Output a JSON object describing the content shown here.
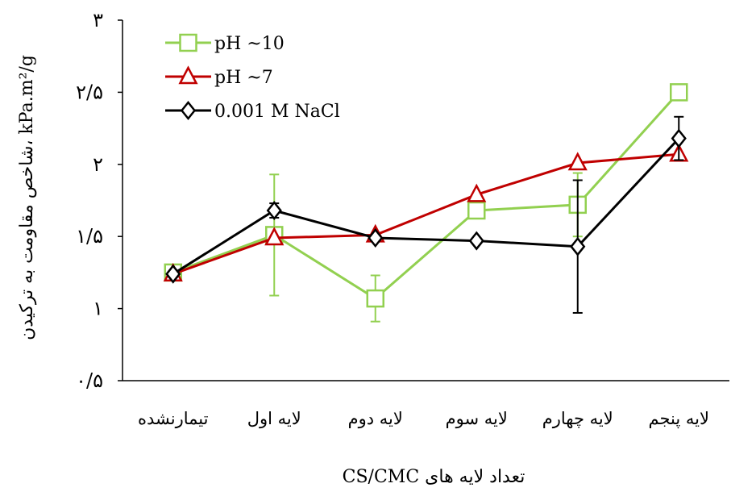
{
  "chart_data": {
    "type": "line",
    "xlabel": "تعداد لایه های CS/CMC",
    "ylabel": "kPa.m²/g ،شاخص مقاومت به ترکیدن",
    "ylim": [
      0.5,
      3
    ],
    "y_ticks": [
      0.5,
      1,
      1.5,
      2,
      2.5,
      3
    ],
    "y_tick_labels": [
      "۰/۵",
      "۱",
      "۱/۵",
      "۲",
      "۲/۵",
      "۳"
    ],
    "categories": [
      "تیمارنشده",
      "لایه اول",
      "لایه دوم",
      "لایه سوم",
      "لایه چهارم",
      "لایه پنجم"
    ],
    "grid": false,
    "legend_position": "top-left",
    "series": [
      {
        "name": "pH ~10",
        "color": "#92d050",
        "marker": "square",
        "values": [
          1.25,
          1.51,
          1.07,
          1.68,
          1.72,
          2.5
        ],
        "errors": [
          0,
          0.42,
          0.16,
          0,
          0.22,
          0
        ]
      },
      {
        "name": "pH ~7",
        "color": "#c00000",
        "marker": "triangle",
        "values": [
          1.24,
          1.49,
          1.51,
          1.79,
          2.01,
          2.07
        ],
        "errors": [
          0,
          0,
          0,
          0,
          0,
          0
        ]
      },
      {
        "name": "0.001 M NaCl",
        "color": "#000000",
        "marker": "diamond",
        "values": [
          1.24,
          1.68,
          1.49,
          1.47,
          1.43,
          2.18
        ],
        "errors": [
          0,
          0.05,
          0,
          0,
          0.46,
          0.15
        ]
      }
    ]
  }
}
